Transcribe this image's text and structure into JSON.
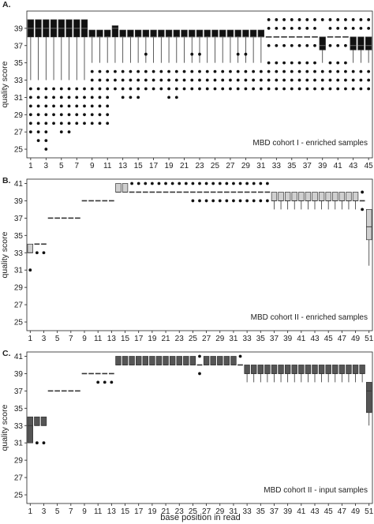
{
  "x_axis_label": "base position in read",
  "y_axis_label": "quality score",
  "chart_data": [
    {
      "type": "box",
      "panel_letter": "A.",
      "annotation": "MBD cohort I - enriched samples",
      "box_color": "#111111",
      "positions": 45,
      "ylim": [
        24,
        41
      ],
      "yticks": [
        25,
        27,
        29,
        31,
        33,
        35,
        37,
        39
      ],
      "xticks": [
        1,
        3,
        5,
        7,
        9,
        11,
        13,
        15,
        17,
        19,
        21,
        23,
        25,
        27,
        29,
        31,
        33,
        35,
        37,
        39,
        41,
        43,
        45
      ],
      "x": [
        1,
        2,
        3,
        4,
        5,
        6,
        7,
        8,
        9,
        10,
        11,
        12,
        13,
        14,
        15,
        16,
        17,
        18,
        19,
        20,
        21,
        22,
        23,
        24,
        25,
        26,
        27,
        28,
        29,
        30,
        31,
        32,
        33,
        34,
        35,
        36,
        37,
        38,
        39,
        40,
        41,
        42,
        43,
        44,
        45
      ],
      "median": [
        39,
        39,
        39,
        39,
        39,
        39,
        39,
        39,
        38,
        38,
        38,
        39,
        38,
        38,
        38,
        38,
        38,
        38,
        38,
        38,
        38,
        38,
        38,
        38,
        38,
        38,
        38,
        38,
        38,
        38,
        38,
        38,
        38,
        38,
        38,
        38,
        38,
        38,
        37,
        38,
        38,
        38,
        37,
        37,
        37
      ],
      "q1": [
        38,
        38,
        38,
        38,
        38,
        38,
        38,
        38,
        38,
        38,
        38,
        38,
        38,
        38,
        38,
        38,
        38,
        38,
        38,
        38,
        38,
        38,
        38,
        38,
        38,
        38,
        38,
        38,
        38,
        38,
        38,
        38,
        38,
        38,
        38,
        38,
        38,
        38,
        36.5,
        38,
        38,
        38,
        36.5,
        36.5,
        36.5
      ],
      "q3": [
        40,
        40,
        40,
        40,
        40,
        40,
        40,
        40,
        38.8,
        38.8,
        38.8,
        39.3,
        38.8,
        38.8,
        38.8,
        38.8,
        38.8,
        38.8,
        38.8,
        38.8,
        38.8,
        38.8,
        38.8,
        38.8,
        38.8,
        38.8,
        38.8,
        38.8,
        38.8,
        38.8,
        38.8,
        38,
        38,
        38,
        38,
        38,
        38,
        38,
        38,
        38,
        38,
        38,
        38,
        38,
        38
      ],
      "whislo": [
        33,
        33,
        33,
        33,
        33,
        33,
        33,
        33,
        35,
        35,
        35,
        35,
        35,
        35,
        35,
        35,
        35,
        35,
        35,
        35,
        35,
        35,
        35,
        35,
        35,
        35,
        35,
        35,
        35,
        35,
        35,
        38,
        38,
        38,
        38,
        38,
        38,
        38,
        35,
        38,
        38,
        38,
        35,
        35,
        35
      ],
      "whishi": [
        40,
        40,
        40,
        40,
        40,
        40,
        40,
        40,
        38.8,
        38.8,
        38.8,
        39.3,
        38.8,
        38.8,
        38.8,
        38.8,
        38.8,
        38.8,
        38.8,
        38.8,
        38.8,
        38.8,
        38.8,
        38.8,
        38.8,
        38.8,
        38.8,
        38.8,
        38.8,
        38.8,
        38.8,
        38,
        38,
        38,
        38,
        38,
        38,
        38,
        38,
        38,
        38,
        38,
        38,
        38,
        38
      ],
      "outliers": [
        [
          32,
          31,
          30,
          29,
          28,
          27
        ],
        [
          32,
          31,
          30,
          29,
          28,
          27,
          26
        ],
        [
          32,
          31,
          30,
          29,
          28,
          27,
          26,
          25
        ],
        [
          32,
          31,
          30,
          29,
          28
        ],
        [
          32,
          31,
          30,
          29,
          28,
          27
        ],
        [
          32,
          31,
          30,
          29,
          28,
          27
        ],
        [
          32,
          31,
          30,
          29,
          28
        ],
        [
          32,
          31,
          30,
          29,
          28
        ],
        [
          34,
          33,
          32,
          31,
          30,
          29,
          28
        ],
        [
          34,
          33,
          32,
          31,
          30,
          29,
          28
        ],
        [
          34,
          33,
          32,
          31,
          30,
          29,
          28
        ],
        [
          34,
          33,
          32
        ],
        [
          34,
          33,
          32,
          31
        ],
        [
          34,
          33,
          32,
          31
        ],
        [
          34,
          33,
          32,
          31
        ],
        [
          36,
          34,
          33,
          32
        ],
        [
          34,
          33,
          32
        ],
        [
          34,
          33,
          32
        ],
        [
          34,
          33,
          32,
          31
        ],
        [
          34,
          33,
          32,
          31
        ],
        [
          34,
          33,
          32
        ],
        [
          36,
          34,
          33,
          32
        ],
        [
          36,
          34,
          33,
          32
        ],
        [
          34,
          33,
          32
        ],
        [
          34,
          33,
          32
        ],
        [
          34,
          33,
          32
        ],
        [
          34,
          33,
          32
        ],
        [
          36,
          34,
          33,
          32
        ],
        [
          36,
          34,
          33,
          32
        ],
        [
          34,
          33,
          32
        ],
        [
          34,
          33,
          32
        ],
        [
          40,
          39,
          37,
          35,
          34,
          33,
          32
        ],
        [
          40,
          39,
          37,
          35,
          34,
          33,
          32
        ],
        [
          40,
          39,
          37,
          35,
          34,
          33,
          32
        ],
        [
          40,
          39,
          37,
          35,
          34,
          33,
          32
        ],
        [
          40,
          39,
          37,
          35,
          34,
          33,
          32
        ],
        [
          40,
          39,
          37,
          35,
          34,
          33,
          32
        ],
        [
          40,
          39,
          37,
          35,
          34,
          33,
          32
        ],
        [
          40,
          34,
          33,
          32
        ],
        [
          40,
          39,
          37,
          35,
          34,
          33,
          32
        ],
        [
          40,
          39,
          37,
          35,
          34,
          33,
          32
        ],
        [
          40,
          39,
          37,
          35,
          34,
          33,
          32
        ],
        [
          40,
          39,
          34,
          33,
          32
        ],
        [
          40,
          39,
          34,
          33,
          32
        ],
        [
          40,
          39,
          34,
          33,
          32
        ]
      ]
    },
    {
      "type": "box",
      "panel_letter": "B.",
      "annotation": "MBD cohort II - enriched samples",
      "box_color": "#d0d0d0",
      "positions": 51,
      "ylim": [
        24,
        41.5
      ],
      "yticks": [
        25,
        27,
        29,
        31,
        33,
        35,
        37,
        39,
        41
      ],
      "xticks": [
        1,
        3,
        5,
        7,
        9,
        11,
        13,
        15,
        17,
        19,
        21,
        23,
        25,
        27,
        29,
        31,
        33,
        35,
        37,
        39,
        41,
        43,
        45,
        47,
        49,
        51
      ],
      "x": [
        1,
        2,
        3,
        4,
        5,
        6,
        7,
        8,
        9,
        10,
        11,
        12,
        13,
        14,
        15,
        16,
        17,
        18,
        19,
        20,
        21,
        22,
        23,
        24,
        25,
        26,
        27,
        28,
        29,
        30,
        31,
        32,
        33,
        34,
        35,
        36,
        37,
        38,
        39,
        40,
        41,
        42,
        43,
        44,
        45,
        46,
        47,
        48,
        49,
        50,
        51
      ],
      "median": [
        33,
        34,
        34,
        37,
        37,
        37,
        37,
        37,
        39,
        39,
        39,
        39,
        39,
        40,
        40,
        40,
        40,
        40,
        40,
        40,
        40,
        40,
        40,
        40,
        40,
        40,
        40,
        40,
        40,
        40,
        40,
        40,
        40,
        40,
        40,
        40,
        39,
        39,
        39,
        39,
        39,
        39,
        39,
        39,
        39,
        39,
        39,
        39,
        39,
        39,
        36
      ],
      "q1": [
        33,
        34,
        34,
        37,
        37,
        37,
        37,
        37,
        39,
        39,
        39,
        39,
        39,
        40,
        40,
        40,
        40,
        40,
        40,
        40,
        40,
        40,
        40,
        40,
        40,
        40,
        40,
        40,
        40,
        40,
        40,
        40,
        40,
        40,
        40,
        40,
        39,
        39,
        39,
        39,
        39,
        39,
        39,
        39,
        39,
        39,
        39,
        39,
        39,
        39,
        34.5
      ],
      "q3": [
        34,
        34,
        34,
        37,
        37,
        37,
        37,
        37,
        39,
        39,
        39,
        39,
        39,
        41,
        41,
        40,
        40,
        40,
        40,
        40,
        40,
        40,
        40,
        40,
        40,
        40,
        40,
        40,
        40,
        40,
        40,
        40,
        40,
        40,
        40,
        40,
        40,
        40,
        40,
        40,
        40,
        40,
        40,
        40,
        40,
        40,
        40,
        40,
        40,
        39,
        38
      ],
      "whislo": [
        33,
        34,
        34,
        37,
        37,
        37,
        37,
        37,
        39,
        39,
        39,
        39,
        39,
        40,
        40,
        40,
        40,
        40,
        40,
        40,
        40,
        40,
        40,
        40,
        40,
        40,
        40,
        40,
        40,
        40,
        40,
        40,
        40,
        40,
        40,
        40,
        38,
        38,
        38,
        38,
        38,
        38,
        38,
        38,
        38,
        38,
        38,
        38,
        38,
        39,
        31.5
      ],
      "whishi": [
        34,
        34,
        34,
        37,
        37,
        37,
        37,
        37,
        39,
        39,
        39,
        39,
        39,
        41,
        41,
        40,
        40,
        40,
        40,
        40,
        40,
        40,
        40,
        40,
        40,
        40,
        40,
        40,
        40,
        40,
        40,
        40,
        40,
        40,
        40,
        40,
        40,
        40,
        40,
        40,
        40,
        40,
        40,
        40,
        40,
        40,
        40,
        40,
        40,
        39,
        38
      ],
      "outliers": [
        [
          31
        ],
        [
          33
        ],
        [
          33
        ],
        [],
        [],
        [],
        [],
        [],
        [],
        [],
        [],
        [],
        [],
        [],
        [],
        [
          41
        ],
        [
          41
        ],
        [
          41
        ],
        [
          41
        ],
        [
          41
        ],
        [
          41
        ],
        [
          41
        ],
        [
          41
        ],
        [
          41
        ],
        [
          41,
          39
        ],
        [
          41,
          39
        ],
        [
          41,
          39
        ],
        [
          41,
          39
        ],
        [
          41,
          39
        ],
        [
          41,
          39
        ],
        [
          41,
          39
        ],
        [
          41,
          39
        ],
        [
          41,
          39
        ],
        [
          41,
          39
        ],
        [
          41,
          39
        ],
        [
          41,
          39
        ],
        [],
        [],
        [],
        [],
        [],
        [],
        [],
        [],
        [],
        [],
        [],
        [],
        [],
        [
          40,
          38
        ],
        []
      ]
    },
    {
      "type": "box",
      "panel_letter": "C.",
      "annotation": "MBD cohort II - input samples",
      "box_color": "#555555",
      "positions": 51,
      "ylim": [
        24,
        41.5
      ],
      "yticks": [
        25,
        27,
        29,
        31,
        33,
        35,
        37,
        39,
        41
      ],
      "xticks": [
        1,
        3,
        5,
        7,
        9,
        11,
        13,
        15,
        17,
        19,
        21,
        23,
        25,
        27,
        29,
        31,
        33,
        35,
        37,
        39,
        41,
        43,
        45,
        47,
        49,
        51
      ],
      "x": [
        1,
        2,
        3,
        4,
        5,
        6,
        7,
        8,
        9,
        10,
        11,
        12,
        13,
        14,
        15,
        16,
        17,
        18,
        19,
        20,
        21,
        22,
        23,
        24,
        25,
        26,
        27,
        28,
        29,
        30,
        31,
        32,
        33,
        34,
        35,
        36,
        37,
        38,
        39,
        40,
        41,
        42,
        43,
        44,
        45,
        46,
        47,
        48,
        49,
        50,
        51
      ],
      "median": [
        33,
        33,
        33,
        37,
        37,
        37,
        37,
        37,
        39,
        39,
        39,
        39,
        39,
        40,
        40,
        40,
        40,
        40,
        40,
        40,
        40,
        40,
        40,
        40,
        40,
        40,
        40,
        40,
        40,
        40,
        40,
        40,
        39,
        39,
        39,
        39,
        39,
        39,
        39,
        39,
        39,
        39,
        39,
        39,
        39,
        39,
        39,
        39,
        39,
        39,
        37
      ],
      "q1": [
        31,
        33,
        33,
        37,
        37,
        37,
        37,
        37,
        39,
        39,
        39,
        39,
        39,
        40,
        40,
        40,
        40,
        40,
        40,
        40,
        40,
        40,
        40,
        40,
        40,
        40,
        40,
        40,
        40,
        40,
        40,
        40,
        39,
        39,
        39,
        39,
        39,
        39,
        39,
        39,
        39,
        39,
        39,
        39,
        39,
        39,
        39,
        39,
        39,
        39,
        34.5
      ],
      "q3": [
        34,
        34,
        34,
        37,
        37,
        37,
        37,
        37,
        39,
        39,
        39,
        39,
        39,
        41,
        41,
        41,
        41,
        41,
        41,
        41,
        41,
        41,
        41,
        41,
        41,
        40,
        41,
        41,
        41,
        41,
        41,
        40,
        40,
        40,
        40,
        40,
        40,
        40,
        40,
        40,
        40,
        40,
        40,
        40,
        40,
        40,
        40,
        40,
        40,
        40,
        38
      ],
      "whislo": [
        31,
        33,
        33,
        37,
        37,
        37,
        37,
        37,
        39,
        39,
        39,
        39,
        39,
        40,
        40,
        40,
        40,
        40,
        40,
        40,
        40,
        40,
        40,
        40,
        40,
        40,
        40,
        40,
        40,
        40,
        40,
        40,
        38,
        38,
        38,
        38,
        38,
        38,
        38,
        38,
        38,
        38,
        38,
        38,
        38,
        38,
        38,
        38,
        38,
        38,
        33
      ],
      "whishi": [
        34,
        34,
        34,
        37,
        37,
        37,
        37,
        37,
        39,
        39,
        39,
        39,
        39,
        41,
        41,
        41,
        41,
        41,
        41,
        41,
        41,
        41,
        41,
        41,
        41,
        40,
        41,
        41,
        41,
        41,
        41,
        40,
        40,
        40,
        40,
        40,
        40,
        40,
        40,
        40,
        40,
        40,
        40,
        40,
        40,
        40,
        40,
        40,
        40,
        40,
        38
      ],
      "outliers": [
        [],
        [
          31
        ],
        [
          31
        ],
        [],
        [],
        [],
        [],
        [],
        [],
        [],
        [
          38
        ],
        [
          38
        ],
        [
          38
        ],
        [],
        [],
        [],
        [],
        [],
        [],
        [],
        [],
        [],
        [],
        [],
        [],
        [
          41,
          39
        ],
        [],
        [],
        [],
        [],
        [],
        [
          41
        ],
        [],
        [],
        [],
        [],
        [],
        [],
        [],
        [],
        [],
        [],
        [],
        [],
        [],
        [],
        [],
        [],
        [],
        [],
        []
      ]
    }
  ]
}
